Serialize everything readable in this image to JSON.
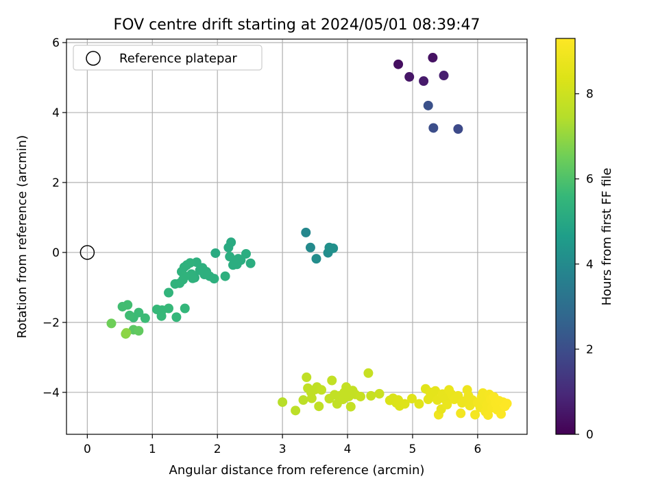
{
  "chart_data": {
    "type": "scatter",
    "title": "FOV centre drift starting at 2024/05/01 08:39:47",
    "xlabel": "Angular distance from reference (arcmin)",
    "ylabel": "Rotation from reference (arcmin)",
    "xlim": [
      -0.32,
      6.76
    ],
    "ylim": [
      -5.2,
      6.1
    ],
    "xticks": [
      "0",
      "1",
      "2",
      "3",
      "4",
      "5",
      "6"
    ],
    "yticks": [
      "−4",
      "−2",
      "0",
      "2",
      "4",
      "6"
    ],
    "grid": true,
    "legend": {
      "location": "upper-left",
      "entries": [
        "Reference platepar"
      ]
    },
    "reference_point": {
      "x": 0,
      "y": 0
    },
    "colorbar": {
      "label": "Hours from first FF file",
      "min": 0,
      "max": 9.3,
      "ticks": [
        "0",
        "2",
        "4",
        "6",
        "8"
      ],
      "colormap": "viridis"
    },
    "points": [
      {
        "x": 4.78,
        "y": 5.38,
        "h": 0.3
      },
      {
        "x": 5.31,
        "y": 5.57,
        "h": 0.4
      },
      {
        "x": 4.95,
        "y": 5.02,
        "h": 0.5
      },
      {
        "x": 5.17,
        "y": 4.9,
        "h": 0.6
      },
      {
        "x": 5.48,
        "y": 5.06,
        "h": 0.7
      },
      {
        "x": 5.24,
        "y": 4.2,
        "h": 2.1
      },
      {
        "x": 5.32,
        "y": 3.56,
        "h": 2.0
      },
      {
        "x": 5.7,
        "y": 3.53,
        "h": 1.9
      },
      {
        "x": 3.36,
        "y": 0.57,
        "h": 3.9
      },
      {
        "x": 3.43,
        "y": 0.14,
        "h": 4.0
      },
      {
        "x": 3.52,
        "y": -0.18,
        "h": 4.1
      },
      {
        "x": 3.7,
        "y": -0.01,
        "h": 4.1
      },
      {
        "x": 3.72,
        "y": 0.14,
        "h": 4.2
      },
      {
        "x": 3.78,
        "y": 0.12,
        "h": 4.2
      },
      {
        "x": 1.97,
        "y": -0.02,
        "h": 5.1
      },
      {
        "x": 2.21,
        "y": 0.29,
        "h": 5.1
      },
      {
        "x": 2.17,
        "y": 0.14,
        "h": 5.1
      },
      {
        "x": 2.44,
        "y": -0.04,
        "h": 5.2
      },
      {
        "x": 2.51,
        "y": -0.31,
        "h": 5.2
      },
      {
        "x": 2.36,
        "y": -0.22,
        "h": 5.2
      },
      {
        "x": 2.27,
        "y": -0.28,
        "h": 5.2
      },
      {
        "x": 2.19,
        "y": -0.12,
        "h": 5.2
      },
      {
        "x": 2.24,
        "y": -0.36,
        "h": 5.2
      },
      {
        "x": 2.3,
        "y": -0.34,
        "h": 5.2
      },
      {
        "x": 2.32,
        "y": -0.18,
        "h": 5.2
      },
      {
        "x": 2.12,
        "y": -0.68,
        "h": 5.3
      },
      {
        "x": 1.95,
        "y": -0.75,
        "h": 5.3
      },
      {
        "x": 1.88,
        "y": -0.68,
        "h": 5.3
      },
      {
        "x": 1.83,
        "y": -0.55,
        "h": 5.3
      },
      {
        "x": 1.77,
        "y": -0.44,
        "h": 5.3
      },
      {
        "x": 1.8,
        "y": -0.63,
        "h": 5.3
      },
      {
        "x": 1.73,
        "y": -0.51,
        "h": 5.3
      },
      {
        "x": 1.68,
        "y": -0.28,
        "h": 5.3
      },
      {
        "x": 1.65,
        "y": -0.72,
        "h": 5.3
      },
      {
        "x": 1.6,
        "y": -0.62,
        "h": 5.35
      },
      {
        "x": 1.62,
        "y": -0.74,
        "h": 5.35
      },
      {
        "x": 1.58,
        "y": -0.3,
        "h": 5.35
      },
      {
        "x": 1.53,
        "y": -0.36,
        "h": 5.35
      },
      {
        "x": 1.49,
        "y": -0.42,
        "h": 5.35
      },
      {
        "x": 1.45,
        "y": -0.55,
        "h": 5.35
      },
      {
        "x": 1.5,
        "y": -0.68,
        "h": 5.4
      },
      {
        "x": 1.47,
        "y": -0.78,
        "h": 5.4
      },
      {
        "x": 1.42,
        "y": -0.88,
        "h": 5.4
      },
      {
        "x": 1.35,
        "y": -0.9,
        "h": 5.4
      },
      {
        "x": 1.25,
        "y": -1.15,
        "h": 5.45
      },
      {
        "x": 1.37,
        "y": -1.85,
        "h": 5.55
      },
      {
        "x": 1.5,
        "y": -1.6,
        "h": 5.55
      },
      {
        "x": 1.25,
        "y": -1.6,
        "h": 5.6
      },
      {
        "x": 1.14,
        "y": -1.82,
        "h": 5.6
      },
      {
        "x": 1.15,
        "y": -1.65,
        "h": 5.6
      },
      {
        "x": 1.07,
        "y": -1.63,
        "h": 5.6
      },
      {
        "x": 0.89,
        "y": -1.88,
        "h": 5.7
      },
      {
        "x": 0.79,
        "y": -1.72,
        "h": 5.7
      },
      {
        "x": 0.71,
        "y": -1.86,
        "h": 5.7
      },
      {
        "x": 0.65,
        "y": -1.8,
        "h": 5.75
      },
      {
        "x": 0.62,
        "y": -1.5,
        "h": 5.8
      },
      {
        "x": 0.54,
        "y": -1.55,
        "h": 5.8
      },
      {
        "x": 0.71,
        "y": -2.21,
        "h": 6.2
      },
      {
        "x": 0.79,
        "y": -2.24,
        "h": 6.3
      },
      {
        "x": 0.37,
        "y": -2.03,
        "h": 6.5
      },
      {
        "x": 0.59,
        "y": -2.33,
        "h": 6.8
      },
      {
        "x": 0.6,
        "y": -2.3,
        "h": 6.9
      },
      {
        "x": 3.0,
        "y": -4.28,
        "h": 7.5
      },
      {
        "x": 3.2,
        "y": -4.52,
        "h": 7.6
      },
      {
        "x": 3.32,
        "y": -4.22,
        "h": 7.6
      },
      {
        "x": 3.37,
        "y": -3.57,
        "h": 7.7
      },
      {
        "x": 3.39,
        "y": -3.88,
        "h": 7.7
      },
      {
        "x": 3.44,
        "y": -4.0,
        "h": 7.7
      },
      {
        "x": 3.45,
        "y": -4.17,
        "h": 7.7
      },
      {
        "x": 3.5,
        "y": -3.92,
        "h": 7.7
      },
      {
        "x": 3.53,
        "y": -3.85,
        "h": 7.7
      },
      {
        "x": 3.56,
        "y": -4.4,
        "h": 7.7
      },
      {
        "x": 3.6,
        "y": -3.93,
        "h": 7.75
      },
      {
        "x": 3.72,
        "y": -4.18,
        "h": 7.75
      },
      {
        "x": 3.76,
        "y": -3.66,
        "h": 7.75
      },
      {
        "x": 3.8,
        "y": -4.07,
        "h": 7.75
      },
      {
        "x": 3.84,
        "y": -4.33,
        "h": 7.75
      },
      {
        "x": 3.88,
        "y": -4.1,
        "h": 7.75
      },
      {
        "x": 3.93,
        "y": -4.2,
        "h": 7.8
      },
      {
        "x": 3.95,
        "y": -4.0,
        "h": 7.8
      },
      {
        "x": 3.98,
        "y": -3.85,
        "h": 7.8
      },
      {
        "x": 4.02,
        "y": -4.12,
        "h": 7.8
      },
      {
        "x": 4.05,
        "y": -4.41,
        "h": 7.8
      },
      {
        "x": 4.08,
        "y": -3.95,
        "h": 7.8
      },
      {
        "x": 4.12,
        "y": -4.06,
        "h": 7.8
      },
      {
        "x": 4.2,
        "y": -4.12,
        "h": 7.85
      },
      {
        "x": 4.32,
        "y": -3.45,
        "h": 7.85
      },
      {
        "x": 4.36,
        "y": -4.1,
        "h": 7.85
      },
      {
        "x": 4.49,
        "y": -4.04,
        "h": 7.9
      },
      {
        "x": 4.65,
        "y": -4.23,
        "h": 8.3
      },
      {
        "x": 4.7,
        "y": -4.17,
        "h": 8.3
      },
      {
        "x": 4.75,
        "y": -4.3,
        "h": 8.3
      },
      {
        "x": 4.78,
        "y": -4.22,
        "h": 8.35
      },
      {
        "x": 4.8,
        "y": -4.39,
        "h": 8.35
      },
      {
        "x": 4.88,
        "y": -4.33,
        "h": 8.4
      },
      {
        "x": 4.99,
        "y": -4.18,
        "h": 8.45
      },
      {
        "x": 5.1,
        "y": -4.33,
        "h": 8.5
      },
      {
        "x": 5.2,
        "y": -3.9,
        "h": 8.5
      },
      {
        "x": 5.24,
        "y": -4.2,
        "h": 8.55
      },
      {
        "x": 5.27,
        "y": -4.0,
        "h": 8.6
      },
      {
        "x": 5.3,
        "y": -4.12,
        "h": 8.6
      },
      {
        "x": 5.35,
        "y": -3.96,
        "h": 8.6
      },
      {
        "x": 5.38,
        "y": -4.22,
        "h": 8.65
      },
      {
        "x": 5.4,
        "y": -4.64,
        "h": 8.9
      },
      {
        "x": 5.44,
        "y": -4.48,
        "h": 8.7
      },
      {
        "x": 5.46,
        "y": -4.05,
        "h": 8.7
      },
      {
        "x": 5.5,
        "y": -4.2,
        "h": 8.7
      },
      {
        "x": 5.53,
        "y": -4.35,
        "h": 8.75
      },
      {
        "x": 5.56,
        "y": -3.93,
        "h": 8.75
      },
      {
        "x": 5.6,
        "y": -4.06,
        "h": 8.75
      },
      {
        "x": 5.64,
        "y": -4.2,
        "h": 8.8
      },
      {
        "x": 5.7,
        "y": -4.1,
        "h": 8.8
      },
      {
        "x": 5.74,
        "y": -4.6,
        "h": 9.0
      },
      {
        "x": 5.76,
        "y": -4.3,
        "h": 8.85
      },
      {
        "x": 5.8,
        "y": -4.25,
        "h": 8.85
      },
      {
        "x": 5.84,
        "y": -3.93,
        "h": 8.85
      },
      {
        "x": 5.86,
        "y": -4.1,
        "h": 8.9
      },
      {
        "x": 5.88,
        "y": -4.38,
        "h": 8.9
      },
      {
        "x": 5.92,
        "y": -4.22,
        "h": 8.9
      },
      {
        "x": 5.96,
        "y": -4.64,
        "h": 9.05
      },
      {
        "x": 6.0,
        "y": -4.3,
        "h": 9.0
      },
      {
        "x": 6.04,
        "y": -4.43,
        "h": 9.0
      },
      {
        "x": 6.06,
        "y": -4.14,
        "h": 9.0
      },
      {
        "x": 6.08,
        "y": -4.02,
        "h": 9.05
      },
      {
        "x": 6.1,
        "y": -4.25,
        "h": 9.05
      },
      {
        "x": 6.12,
        "y": -4.55,
        "h": 9.1
      },
      {
        "x": 6.14,
        "y": -4.36,
        "h": 9.1
      },
      {
        "x": 6.16,
        "y": -4.65,
        "h": 9.15
      },
      {
        "x": 6.18,
        "y": -4.06,
        "h": 9.1
      },
      {
        "x": 6.2,
        "y": -4.2,
        "h": 9.15
      },
      {
        "x": 6.22,
        "y": -4.44,
        "h": 9.15
      },
      {
        "x": 6.25,
        "y": -4.13,
        "h": 9.2
      },
      {
        "x": 6.28,
        "y": -4.32,
        "h": 9.2
      },
      {
        "x": 6.3,
        "y": -4.5,
        "h": 9.2
      },
      {
        "x": 6.33,
        "y": -4.24,
        "h": 9.25
      },
      {
        "x": 6.36,
        "y": -4.62,
        "h": 9.25
      },
      {
        "x": 6.39,
        "y": -4.28,
        "h": 9.25
      },
      {
        "x": 6.42,
        "y": -4.4,
        "h": 9.3
      },
      {
        "x": 6.45,
        "y": -4.32,
        "h": 9.3
      }
    ]
  }
}
